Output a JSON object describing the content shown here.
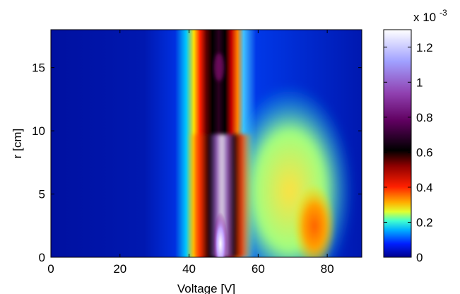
{
  "chart_data": {
    "type": "heatmap",
    "title": "",
    "xlabel": "Voltage [V]",
    "ylabel": "r [cm]",
    "xlim": [
      0,
      90
    ],
    "ylim": [
      0,
      18
    ],
    "xticks": [
      "0",
      "20",
      "40",
      "60",
      "80"
    ],
    "yticks": [
      "0",
      "5",
      "10",
      "15"
    ],
    "colorbar": {
      "colormap": [
        "#00008f",
        "#0050ff",
        "#00e0ff",
        "#e0ff30",
        "#ffb000",
        "#ff2000",
        "#800000",
        "#000000",
        "#80106f",
        "#a050c0",
        "#b0b0ff",
        "#ffffff"
      ],
      "range": [
        0,
        0.0013
      ],
      "scale_label": "x 10",
      "scale_exponent": "-3",
      "ticks": [
        "0",
        "0.2",
        "0.4",
        "0.6",
        "0.8",
        "1",
        "1.2"
      ]
    },
    "features": [
      {
        "name": "main-peak-ridge",
        "voltage_center": 48.5,
        "voltage_range": [
          38,
          56
        ],
        "peak_value": 0.0013
      },
      {
        "name": "secondary-broad-region",
        "voltage_range": [
          55,
          84
        ],
        "r_range": [
          0,
          14
        ],
        "peak_voltage": 76,
        "peak_value": 0.00032
      }
    ]
  }
}
